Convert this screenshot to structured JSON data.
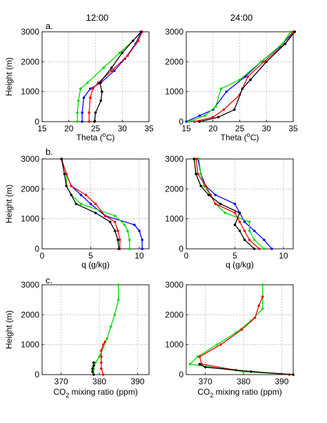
{
  "figure": {
    "col_titles": [
      "12:00",
      "24:00"
    ],
    "row_labels": [
      "a.",
      "b.",
      "c."
    ]
  },
  "chart_data": [
    {
      "type": "line",
      "panel": "a-12:00",
      "xlabel": "Theta",
      "xlabel_unit_pre": " (",
      "xlabel_unit_sup": "o",
      "xlabel_unit_post": "C)",
      "ylabel": "Height (m)",
      "xlim": [
        15,
        35
      ],
      "ylim": [
        0,
        3000
      ],
      "xticks": [
        "15",
        "20",
        "25",
        "30",
        "35"
      ],
      "yticks": [
        "0",
        "1000",
        "2000",
        "3000"
      ],
      "grid": true,
      "series": [
        {
          "color": "#00dd00",
          "marker": "dot",
          "x": [
            21.6,
            21.6,
            21.8,
            22.2,
            23.5,
            26.5,
            29.5,
            32,
            33.5
          ],
          "y": [
            0,
            300,
            700,
            1100,
            1300,
            1800,
            2300,
            2700,
            3000
          ]
        },
        {
          "color": "#0000ff",
          "marker": "dot",
          "x": [
            22.5,
            22.5,
            22.8,
            24,
            26,
            28.5,
            30.5,
            32.5,
            33.5
          ],
          "y": [
            0,
            300,
            800,
            1100,
            1300,
            1700,
            2100,
            2600,
            3000
          ]
        },
        {
          "color": "#ff0000",
          "marker": "dot",
          "x": [
            23.8,
            23.8,
            24,
            24.5,
            25.5,
            28,
            31,
            33,
            33.7
          ],
          "y": [
            0,
            300,
            800,
            1100,
            1300,
            1700,
            2200,
            2700,
            3000
          ]
        },
        {
          "color": "#000000",
          "marker": "dot",
          "x": [
            24.8,
            25,
            26,
            26.2,
            25.8,
            28,
            30,
            32,
            33.5
          ],
          "y": [
            0,
            300,
            700,
            1000,
            1300,
            1800,
            2300,
            2700,
            3000
          ]
        }
      ]
    },
    {
      "type": "line",
      "panel": "a-24:00",
      "xlabel": "Theta",
      "xlabel_unit_pre": " (",
      "xlabel_unit_sup": "o",
      "xlabel_unit_post": "C)",
      "ylabel": "",
      "xlim": [
        15,
        35
      ],
      "ylim": [
        0,
        3000
      ],
      "xticks": [
        "15",
        "20",
        "25",
        "30",
        "35"
      ],
      "yticks": [
        "0",
        "1000",
        "2000",
        "3000"
      ],
      "grid": true,
      "series": [
        {
          "color": "#0000ff",
          "marker": "dot",
          "x": [
            15,
            17.5,
            20,
            22.5,
            26,
            29,
            32.5,
            35
          ],
          "y": [
            0,
            200,
            400,
            1000,
            1500,
            2000,
            2500,
            3000
          ]
        },
        {
          "color": "#00dd00",
          "marker": "dot",
          "x": [
            15.5,
            18.5,
            20.5,
            21.5,
            25,
            29,
            33,
            34.5
          ],
          "y": [
            0,
            200,
            500,
            1100,
            1400,
            2000,
            2600,
            3000
          ]
        },
        {
          "color": "#ff0000",
          "marker": "dot",
          "x": [
            16.5,
            20,
            22,
            25,
            26.5,
            29.5,
            33.5,
            35
          ],
          "y": [
            0,
            150,
            400,
            900,
            1500,
            2000,
            2600,
            3000
          ]
        },
        {
          "color": "#000000",
          "marker": "dot",
          "x": [
            17.5,
            21,
            24,
            25.5,
            27,
            30,
            33.5,
            35.3
          ],
          "y": [
            0,
            150,
            400,
            1100,
            1400,
            2000,
            2600,
            3000
          ]
        }
      ]
    },
    {
      "type": "line",
      "panel": "b-12:00",
      "xlabel": "q (g/kg)",
      "ylabel": "Height (m)",
      "xlim": [
        0,
        11
      ],
      "ylim": [
        0,
        3000
      ],
      "xticks": [
        "0",
        "5",
        "10"
      ],
      "yticks": [
        "0",
        "1000",
        "2000",
        "3000"
      ],
      "grid": true,
      "series": [
        {
          "color": "#0000ff",
          "marker": "dot",
          "x": [
            10.3,
            10.3,
            10,
            9.5,
            6.5,
            5,
            4,
            3,
            2.5,
            2
          ],
          "y": [
            0,
            300,
            600,
            800,
            1100,
            1500,
            1800,
            2100,
            2500,
            3000
          ]
        },
        {
          "color": "#00dd00",
          "marker": "dot",
          "x": [
            9,
            9,
            8.8,
            8.5,
            7.5,
            4,
            3,
            2.5,
            2.5,
            2
          ],
          "y": [
            0,
            300,
            600,
            800,
            1100,
            1500,
            1800,
            2100,
            2500,
            3000
          ]
        },
        {
          "color": "#ff0000",
          "marker": "dot",
          "x": [
            8,
            8,
            7.8,
            7.5,
            6.5,
            5.5,
            4.5,
            3,
            2.5,
            2
          ],
          "y": [
            0,
            300,
            600,
            900,
            1100,
            1500,
            1800,
            2100,
            2500,
            3000
          ]
        },
        {
          "color": "#000000",
          "marker": "dot",
          "x": [
            7.9,
            7.8,
            7.5,
            7,
            5.5,
            3.5,
            3,
            2.5,
            2.3,
            2
          ],
          "y": [
            0,
            300,
            600,
            900,
            1200,
            1500,
            1800,
            2100,
            2500,
            3000
          ]
        }
      ]
    },
    {
      "type": "line",
      "panel": "b-24:00",
      "xlabel": "q (g/kg)",
      "ylabel": "",
      "xlim": [
        0,
        11
      ],
      "ylim": [
        0,
        3000
      ],
      "xticks": [
        "0",
        "5",
        "10"
      ],
      "yticks": [
        "0",
        "1000",
        "2000",
        "3000"
      ],
      "grid": true,
      "series": [
        {
          "color": "#0000ff",
          "marker": "dot",
          "x": [
            8.8,
            8,
            7,
            6,
            5.5,
            5,
            3,
            2,
            1.5,
            1.2
          ],
          "y": [
            0,
            300,
            600,
            900,
            1200,
            1500,
            1800,
            2100,
            2500,
            3000
          ]
        },
        {
          "color": "#00dd00",
          "marker": "dot",
          "x": [
            8,
            7,
            6.5,
            6.5,
            4,
            3,
            2.5,
            1.8,
            1.5,
            1.3
          ],
          "y": [
            0,
            300,
            600,
            900,
            1200,
            1500,
            1800,
            2100,
            2500,
            3000
          ]
        },
        {
          "color": "#ff0000",
          "marker": "dot",
          "x": [
            7.5,
            6.5,
            6,
            5.5,
            5,
            3,
            2.5,
            2,
            1.2,
            1
          ],
          "y": [
            0,
            300,
            600,
            900,
            1200,
            1500,
            1800,
            2100,
            2500,
            3000
          ]
        },
        {
          "color": "#000000",
          "marker": "dot",
          "x": [
            7,
            6,
            5.5,
            5,
            5.5,
            3.5,
            2.3,
            1.5,
            1,
            0.8
          ],
          "y": [
            0,
            300,
            600,
            800,
            1200,
            1500,
            1800,
            2100,
            2500,
            3000
          ]
        }
      ]
    },
    {
      "type": "line",
      "panel": "c-12:00",
      "xlabel_pre": "CO",
      "xlabel_sub": "2",
      "xlabel_post": " mixing ratio (ppm)",
      "ylabel": "Height (m)",
      "xlim": [
        365,
        393
      ],
      "ylim": [
        0,
        3000
      ],
      "xticks": [
        "370",
        "380",
        "390"
      ],
      "yticks": [
        "0",
        "1000",
        "2000",
        "3000"
      ],
      "grid": true,
      "series": [
        {
          "color": "#00dd00",
          "marker": "dot",
          "x": [
            378.5,
            378.5,
            379,
            380,
            381,
            382,
            383,
            384,
            385,
            385
          ],
          "y": [
            0,
            200,
            400,
            600,
            900,
            1200,
            1600,
            2000,
            2500,
            3000
          ]
        },
        {
          "color": "#ff0000",
          "marker": "dot",
          "x": [
            381,
            380.5,
            380.5,
            380.5,
            380.5,
            381,
            381.5
          ],
          "y": [
            0,
            200,
            400,
            600,
            800,
            1000,
            1100
          ]
        },
        {
          "color": "#000000",
          "marker": "dot",
          "x": [
            378.5,
            378.2,
            378.2,
            378.5,
            378.5
          ],
          "y": [
            0,
            100,
            200,
            300,
            400
          ]
        }
      ]
    },
    {
      "type": "line",
      "panel": "c-24:00",
      "xlabel_pre": "CO",
      "xlabel_sub": "2",
      "xlabel_post": " mixing ratio (ppm)",
      "ylabel": "",
      "xlim": [
        365,
        393
      ],
      "ylim": [
        0,
        3000
      ],
      "xticks": [
        "370",
        "380",
        "390"
      ],
      "yticks": [
        "0",
        "1000",
        "2000",
        "3000"
      ],
      "grid": true,
      "series": [
        {
          "color": "#00dd00",
          "marker": "dot",
          "x": [
            393,
            380,
            366,
            368,
            373,
            378,
            382,
            385,
            385,
            385
          ],
          "y": [
            0,
            100,
            350,
            600,
            1000,
            1400,
            1800,
            2200,
            2600,
            3000
          ]
        },
        {
          "color": "#ff0000",
          "marker": "dot",
          "x": [
            392,
            378,
            369,
            368.5,
            374,
            379.5,
            383,
            384,
            385
          ],
          "y": [
            0,
            150,
            350,
            600,
            1000,
            1500,
            1900,
            2300,
            2600
          ]
        },
        {
          "color": "#000000",
          "marker": "dot",
          "x": [
            393,
            382,
            370,
            368.5
          ],
          "y": [
            0,
            100,
            250,
            350
          ]
        }
      ]
    }
  ]
}
